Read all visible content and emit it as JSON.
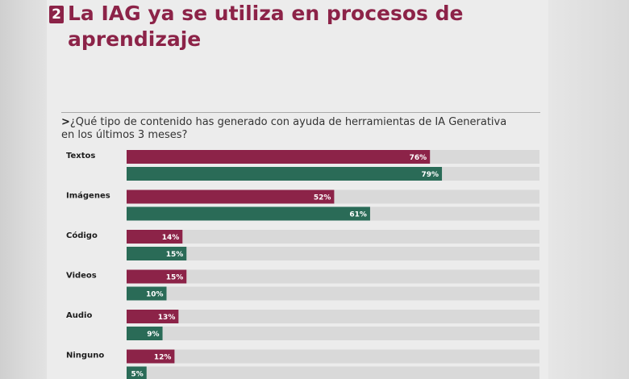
{
  "header": {
    "number": "2",
    "title": "La IAG ya se utiliza en procesos de aprendizaje"
  },
  "question": {
    "marker": ">",
    "text": "¿Qué tipo de contenido has generado con ayuda de herramientas de IA Generativa en los últimos 3 meses?"
  },
  "colors": {
    "series_a": "#8c2348",
    "series_b": "#2a6b57",
    "track": "#d9d9d9",
    "title": "#8c2348"
  },
  "chart_data": {
    "type": "bar",
    "orientation": "horizontal",
    "categories": [
      "Textos",
      "Imágenes",
      "Código",
      "Videos",
      "Audio",
      "Ninguno"
    ],
    "series": [
      {
        "color": "#8c2348",
        "values": [
          76,
          52,
          14,
          15,
          13,
          12
        ]
      },
      {
        "color": "#2a6b57",
        "values": [
          79,
          61,
          15,
          10,
          9,
          5
        ]
      }
    ],
    "value_suffix": "%",
    "xlim": [
      0,
      100
    ],
    "grid": false,
    "legend": "none"
  }
}
